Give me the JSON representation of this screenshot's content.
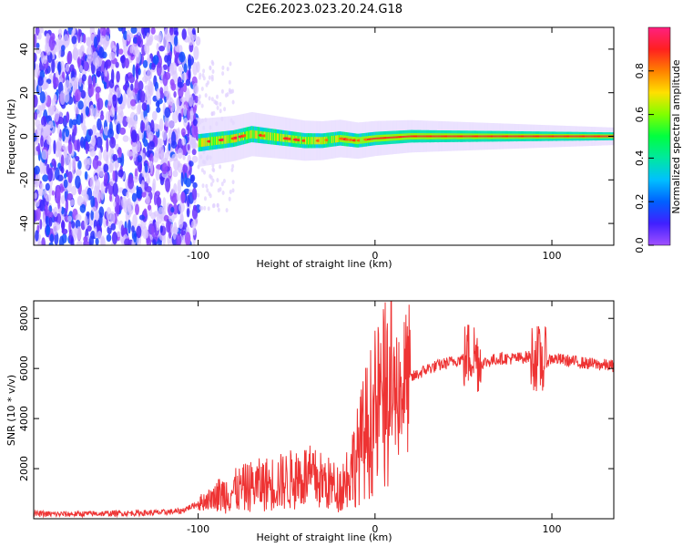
{
  "title": "C2E6.2023.023.20.24.G18",
  "chart_data": [
    {
      "type": "heatmap",
      "xlabel": "Height of straight line (km)",
      "ylabel": "Frequency (Hz)",
      "xlim": [
        -193,
        135
      ],
      "ylim": [
        -50,
        50
      ],
      "x_ticks": [
        -100,
        0,
        100
      ],
      "y_ticks": [
        -40,
        -20,
        0,
        20,
        40
      ],
      "colorbar": {
        "label": "Normalized spectral amplitude",
        "range": [
          0,
          1
        ],
        "ticks": [
          "0.0",
          "0.2",
          "0.4",
          "0.6",
          "0.8"
        ]
      },
      "noise_region": {
        "x_start": -193,
        "x_end": -100,
        "freq_span": [
          -50,
          50
        ]
      },
      "signal_trace": [
        {
          "x": -100,
          "f": -3
        },
        {
          "x": -90,
          "f": -2
        },
        {
          "x": -80,
          "f": -1
        },
        {
          "x": -70,
          "f": 1
        },
        {
          "x": -60,
          "f": 0
        },
        {
          "x": -50,
          "f": -1
        },
        {
          "x": -40,
          "f": -2
        },
        {
          "x": -30,
          "f": -2
        },
        {
          "x": -20,
          "f": -1
        },
        {
          "x": -10,
          "f": -2
        },
        {
          "x": 0,
          "f": -1
        },
        {
          "x": 20,
          "f": 0
        },
        {
          "x": 60,
          "f": 0
        },
        {
          "x": 100,
          "f": 0
        },
        {
          "x": 135,
          "f": 0
        }
      ]
    },
    {
      "type": "line",
      "xlabel": "Height of straight line (km)",
      "ylabel": "SNR (10 * v/v)",
      "xlim": [
        -193,
        135
      ],
      "ylim": [
        0,
        8700
      ],
      "x_ticks": [
        -100,
        0,
        100
      ],
      "y_ticks": [
        2000,
        4000,
        6000,
        8000
      ],
      "color": "#ee3333",
      "series": [
        {
          "x": [
            -193,
            -180,
            -160,
            -140,
            -120,
            -110,
            -100,
            -90,
            -80,
            -70,
            -60,
            -50,
            -40,
            -30,
            -20,
            -15,
            -10,
            -5,
            0,
            5,
            10,
            15,
            20,
            25,
            30,
            35,
            40,
            45,
            50,
            55,
            60,
            65,
            70,
            80,
            90,
            95,
            100,
            110,
            120,
            135
          ],
          "y": [
            200,
            180,
            200,
            220,
            250,
            300,
            600,
            900,
            1100,
            1300,
            1400,
            1500,
            1700,
            1500,
            1200,
            1800,
            2500,
            3500,
            4200,
            4800,
            5000,
            5300,
            5600,
            5800,
            6000,
            6100,
            6200,
            6300,
            6400,
            6700,
            6200,
            6300,
            6400,
            6400,
            6500,
            6200,
            6400,
            6300,
            6200,
            6100
          ]
        }
      ]
    }
  ]
}
